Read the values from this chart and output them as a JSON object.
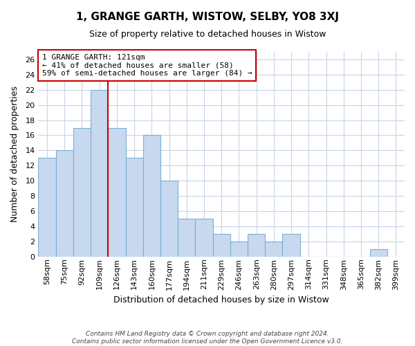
{
  "title": "1, GRANGE GARTH, WISTOW, SELBY, YO8 3XJ",
  "subtitle": "Size of property relative to detached houses in Wistow",
  "xlabel": "Distribution of detached houses by size in Wistow",
  "ylabel": "Number of detached properties",
  "bar_labels": [
    "58sqm",
    "75sqm",
    "92sqm",
    "109sqm",
    "126sqm",
    "143sqm",
    "160sqm",
    "177sqm",
    "194sqm",
    "211sqm",
    "229sqm",
    "246sqm",
    "263sqm",
    "280sqm",
    "297sqm",
    "314sqm",
    "331sqm",
    "348sqm",
    "365sqm",
    "382sqm",
    "399sqm"
  ],
  "bar_values": [
    13,
    14,
    17,
    22,
    17,
    13,
    16,
    10,
    5,
    5,
    3,
    2,
    3,
    2,
    3,
    0,
    0,
    0,
    0,
    1,
    0
  ],
  "bar_color": "#c8d8ee",
  "bar_edge_color": "#7bafd4",
  "vline_color": "#cc0000",
  "vline_pos": 3.5,
  "ylim_max": 27,
  "ytick_step": 2,
  "annotation_title": "1 GRANGE GARTH: 121sqm",
  "annotation_line1": "← 41% of detached houses are smaller (58)",
  "annotation_line2": "59% of semi-detached houses are larger (84) →",
  "annotation_box_facecolor": "#ffffff",
  "annotation_box_edgecolor": "#cc0000",
  "footer_line1": "Contains HM Land Registry data © Crown copyright and database right 2024.",
  "footer_line2": "Contains public sector information licensed under the Open Government Licence v3.0.",
  "background_color": "#ffffff",
  "grid_color": "#c8d4e8",
  "title_fontsize": 11,
  "subtitle_fontsize": 9,
  "axis_label_fontsize": 9,
  "tick_fontsize": 8,
  "annotation_fontsize": 8,
  "footer_fontsize": 6.5
}
